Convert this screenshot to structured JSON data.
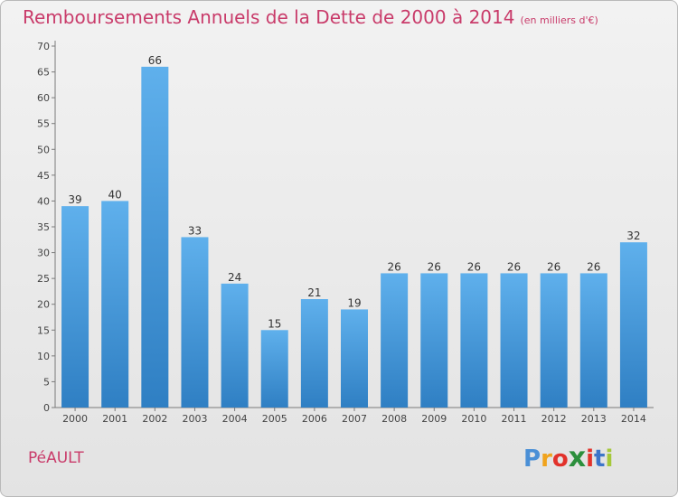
{
  "title": "Remboursements Annuels de la Dette de 2000 à 2014",
  "subtitle": "(en milliers d'€)",
  "commune": "PéAULT",
  "logo": {
    "letters": [
      "P",
      "r",
      "o",
      "x",
      "i",
      "t",
      "i"
    ],
    "colors": [
      "#4a8fd6",
      "#f0a31c",
      "#e2322b",
      "#2c8f3c",
      "#e2322b",
      "#3c75c9",
      "#a5c83a"
    ]
  },
  "colors": {
    "bar_top": "#5fb0ec",
    "bar_bottom": "#2f7fc3",
    "title": "#c93b6a"
  },
  "chart_data": {
    "type": "bar",
    "title": "Remboursements Annuels de la Dette de 2000 à 2014",
    "subtitle": "(en milliers d'€)",
    "xlabel": "",
    "ylabel": "",
    "ylim": [
      0,
      70
    ],
    "yticks": [
      0,
      5,
      10,
      15,
      20,
      25,
      30,
      35,
      40,
      45,
      50,
      55,
      60,
      65,
      70
    ],
    "grid": false,
    "categories": [
      "2000",
      "2001",
      "2002",
      "2003",
      "2004",
      "2005",
      "2006",
      "2007",
      "2008",
      "2009",
      "2010",
      "2011",
      "2012",
      "2013",
      "2014"
    ],
    "values": [
      39,
      40,
      66,
      33,
      24,
      15,
      21,
      19,
      26,
      26,
      26,
      26,
      26,
      26,
      32
    ]
  }
}
